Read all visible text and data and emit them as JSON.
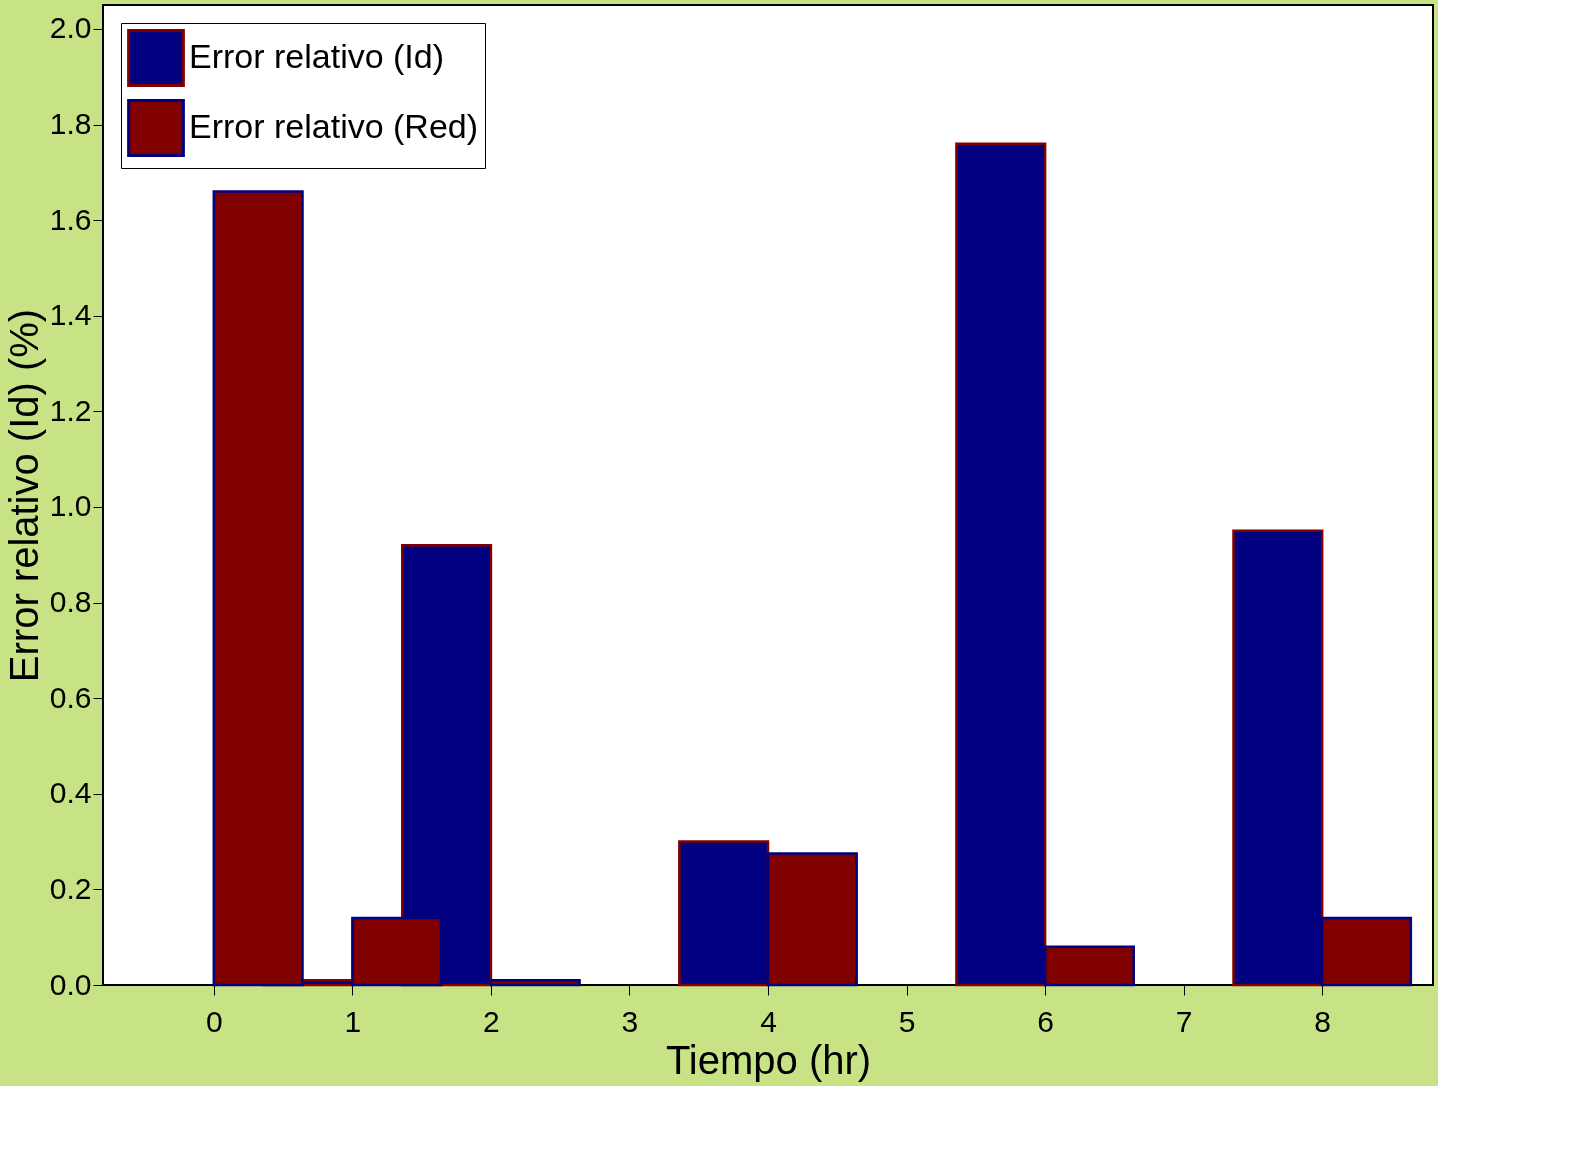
{
  "chart_data": {
    "type": "bar",
    "xlabel": "Tiempo (hr)",
    "ylabel": "Error relativo (Id) (%)",
    "x": [
      0,
      1,
      2,
      3,
      4,
      5,
      6,
      7,
      8
    ],
    "series": [
      {
        "name": "Error relativo (Id)",
        "color": "#000080",
        "values": [
          null,
          0.01,
          0.92,
          null,
          0.3,
          null,
          1.76,
          null,
          0.95
        ]
      },
      {
        "name": "Error relativo (Red)",
        "color": "#800000",
        "values": [
          1.66,
          0.14,
          0.01,
          null,
          0.275,
          null,
          0.08,
          null,
          0.14
        ]
      }
    ],
    "xlim": [
      -0.8,
      8.8
    ],
    "xticks": [
      0,
      1,
      2,
      3,
      4,
      5,
      6,
      7,
      8
    ],
    "ylim": [
      0,
      2.05
    ],
    "yticks": [
      {
        "value": 0,
        "label": "0.0"
      },
      0.2,
      0.4,
      0.6,
      0.8,
      {
        "value": 1,
        "label": "1.0"
      },
      1.2,
      1.4,
      1.6,
      1.8,
      {
        "value": 2,
        "label": "2.0"
      }
    ],
    "grid": false,
    "legend": "top left"
  }
}
